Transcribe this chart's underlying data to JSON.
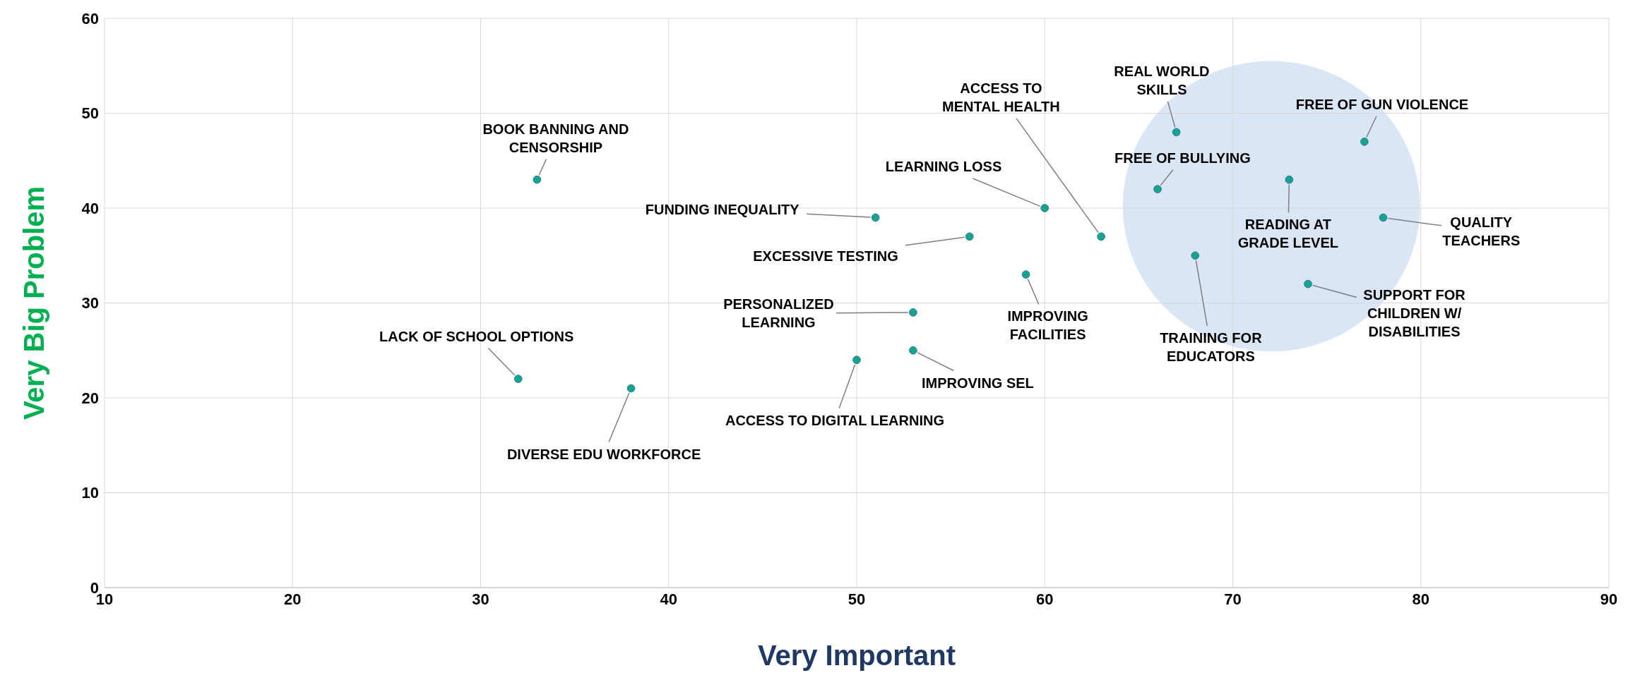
{
  "chart_data": {
    "type": "scatter",
    "xlabel": "Very Important",
    "ylabel": "Very Big Problem",
    "xlim": [
      10,
      90
    ],
    "xticks": [
      10,
      20,
      30,
      40,
      50,
      60,
      70,
      80,
      90
    ],
    "ylim": [
      0,
      60
    ],
    "yticks": [
      0,
      10,
      20,
      30,
      40,
      50,
      60
    ],
    "grid": true,
    "marker": "circle",
    "series": [
      {
        "color": "#17a589",
        "x": [
          33,
          32,
          38,
          50,
          53,
          53,
          51,
          56,
          59,
          60,
          63,
          67,
          66,
          68,
          73,
          77,
          78,
          74
        ],
        "values": [
          43,
          22,
          21,
          24,
          29,
          25,
          39,
          37,
          33,
          40,
          37,
          48,
          42,
          35,
          43,
          47,
          39,
          32
        ]
      }
    ],
    "annotations": [
      {
        "text": "BOOK BANNING AND CENSORSHIP",
        "x": 33,
        "y": 43
      },
      {
        "text": "LACK OF SCHOOL OPTIONS",
        "x": 32,
        "y": 22
      },
      {
        "text": "DIVERSE EDU WORKFORCE",
        "x": 38,
        "y": 21
      },
      {
        "text": "ACCESS TO DIGITAL LEARNING",
        "x": 50,
        "y": 24
      },
      {
        "text": "PERSONALIZED LEARNING",
        "x": 53,
        "y": 29
      },
      {
        "text": "IMPROVING SEL",
        "x": 53,
        "y": 25
      },
      {
        "text": "FUNDING INEQUALITY",
        "x": 51,
        "y": 39
      },
      {
        "text": "EXCESSIVE TESTING",
        "x": 56,
        "y": 37
      },
      {
        "text": "IMPROVING FACILITIES",
        "x": 59,
        "y": 33
      },
      {
        "text": "LEARNING LOSS",
        "x": 60,
        "y": 40
      },
      {
        "text": "ACCESS TO MENTAL HEALTH",
        "x": 63,
        "y": 37
      },
      {
        "text": "REAL WORLD SKILLS",
        "x": 67,
        "y": 48
      },
      {
        "text": "FREE OF BULLYING",
        "x": 66,
        "y": 42
      },
      {
        "text": "TRAINING FOR EDUCATORS",
        "x": 68,
        "y": 35
      },
      {
        "text": "READING AT GRADE LEVEL",
        "x": 73,
        "y": 43
      },
      {
        "text": "FREE OF GUN VIOLENCE",
        "x": 77,
        "y": 47
      },
      {
        "text": "QUALITY TEACHERS",
        "x": 78,
        "y": 39
      },
      {
        "text": "SUPPORT FOR CHILDREN W/ DISABILITIES",
        "x": 74,
        "y": 32
      }
    ]
  }
}
